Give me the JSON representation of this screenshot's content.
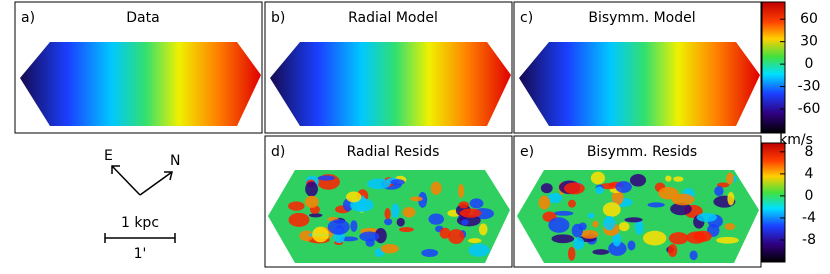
{
  "panels": [
    {
      "tag": "a)",
      "title": "Data"
    },
    {
      "tag": "b)",
      "title": "Radial Model"
    },
    {
      "tag": "c)",
      "title": "Bisymm. Model"
    },
    {
      "tag": "d)",
      "title": "Radial Resids"
    },
    {
      "tag": "e)",
      "title": "Bisymm. Resids"
    }
  ],
  "colorbars": [
    {
      "lim": [
        -92,
        83
      ],
      "ticks": [
        60,
        30,
        0,
        -30,
        -60
      ],
      "unit": "km/s"
    },
    {
      "lim": [
        -12,
        9.6
      ],
      "ticks": [
        8,
        4,
        0,
        -4,
        -8
      ]
    }
  ],
  "compass": {
    "east": "E",
    "north": "N"
  },
  "scale": {
    "length": "1 kpc",
    "angle": "1'"
  }
}
